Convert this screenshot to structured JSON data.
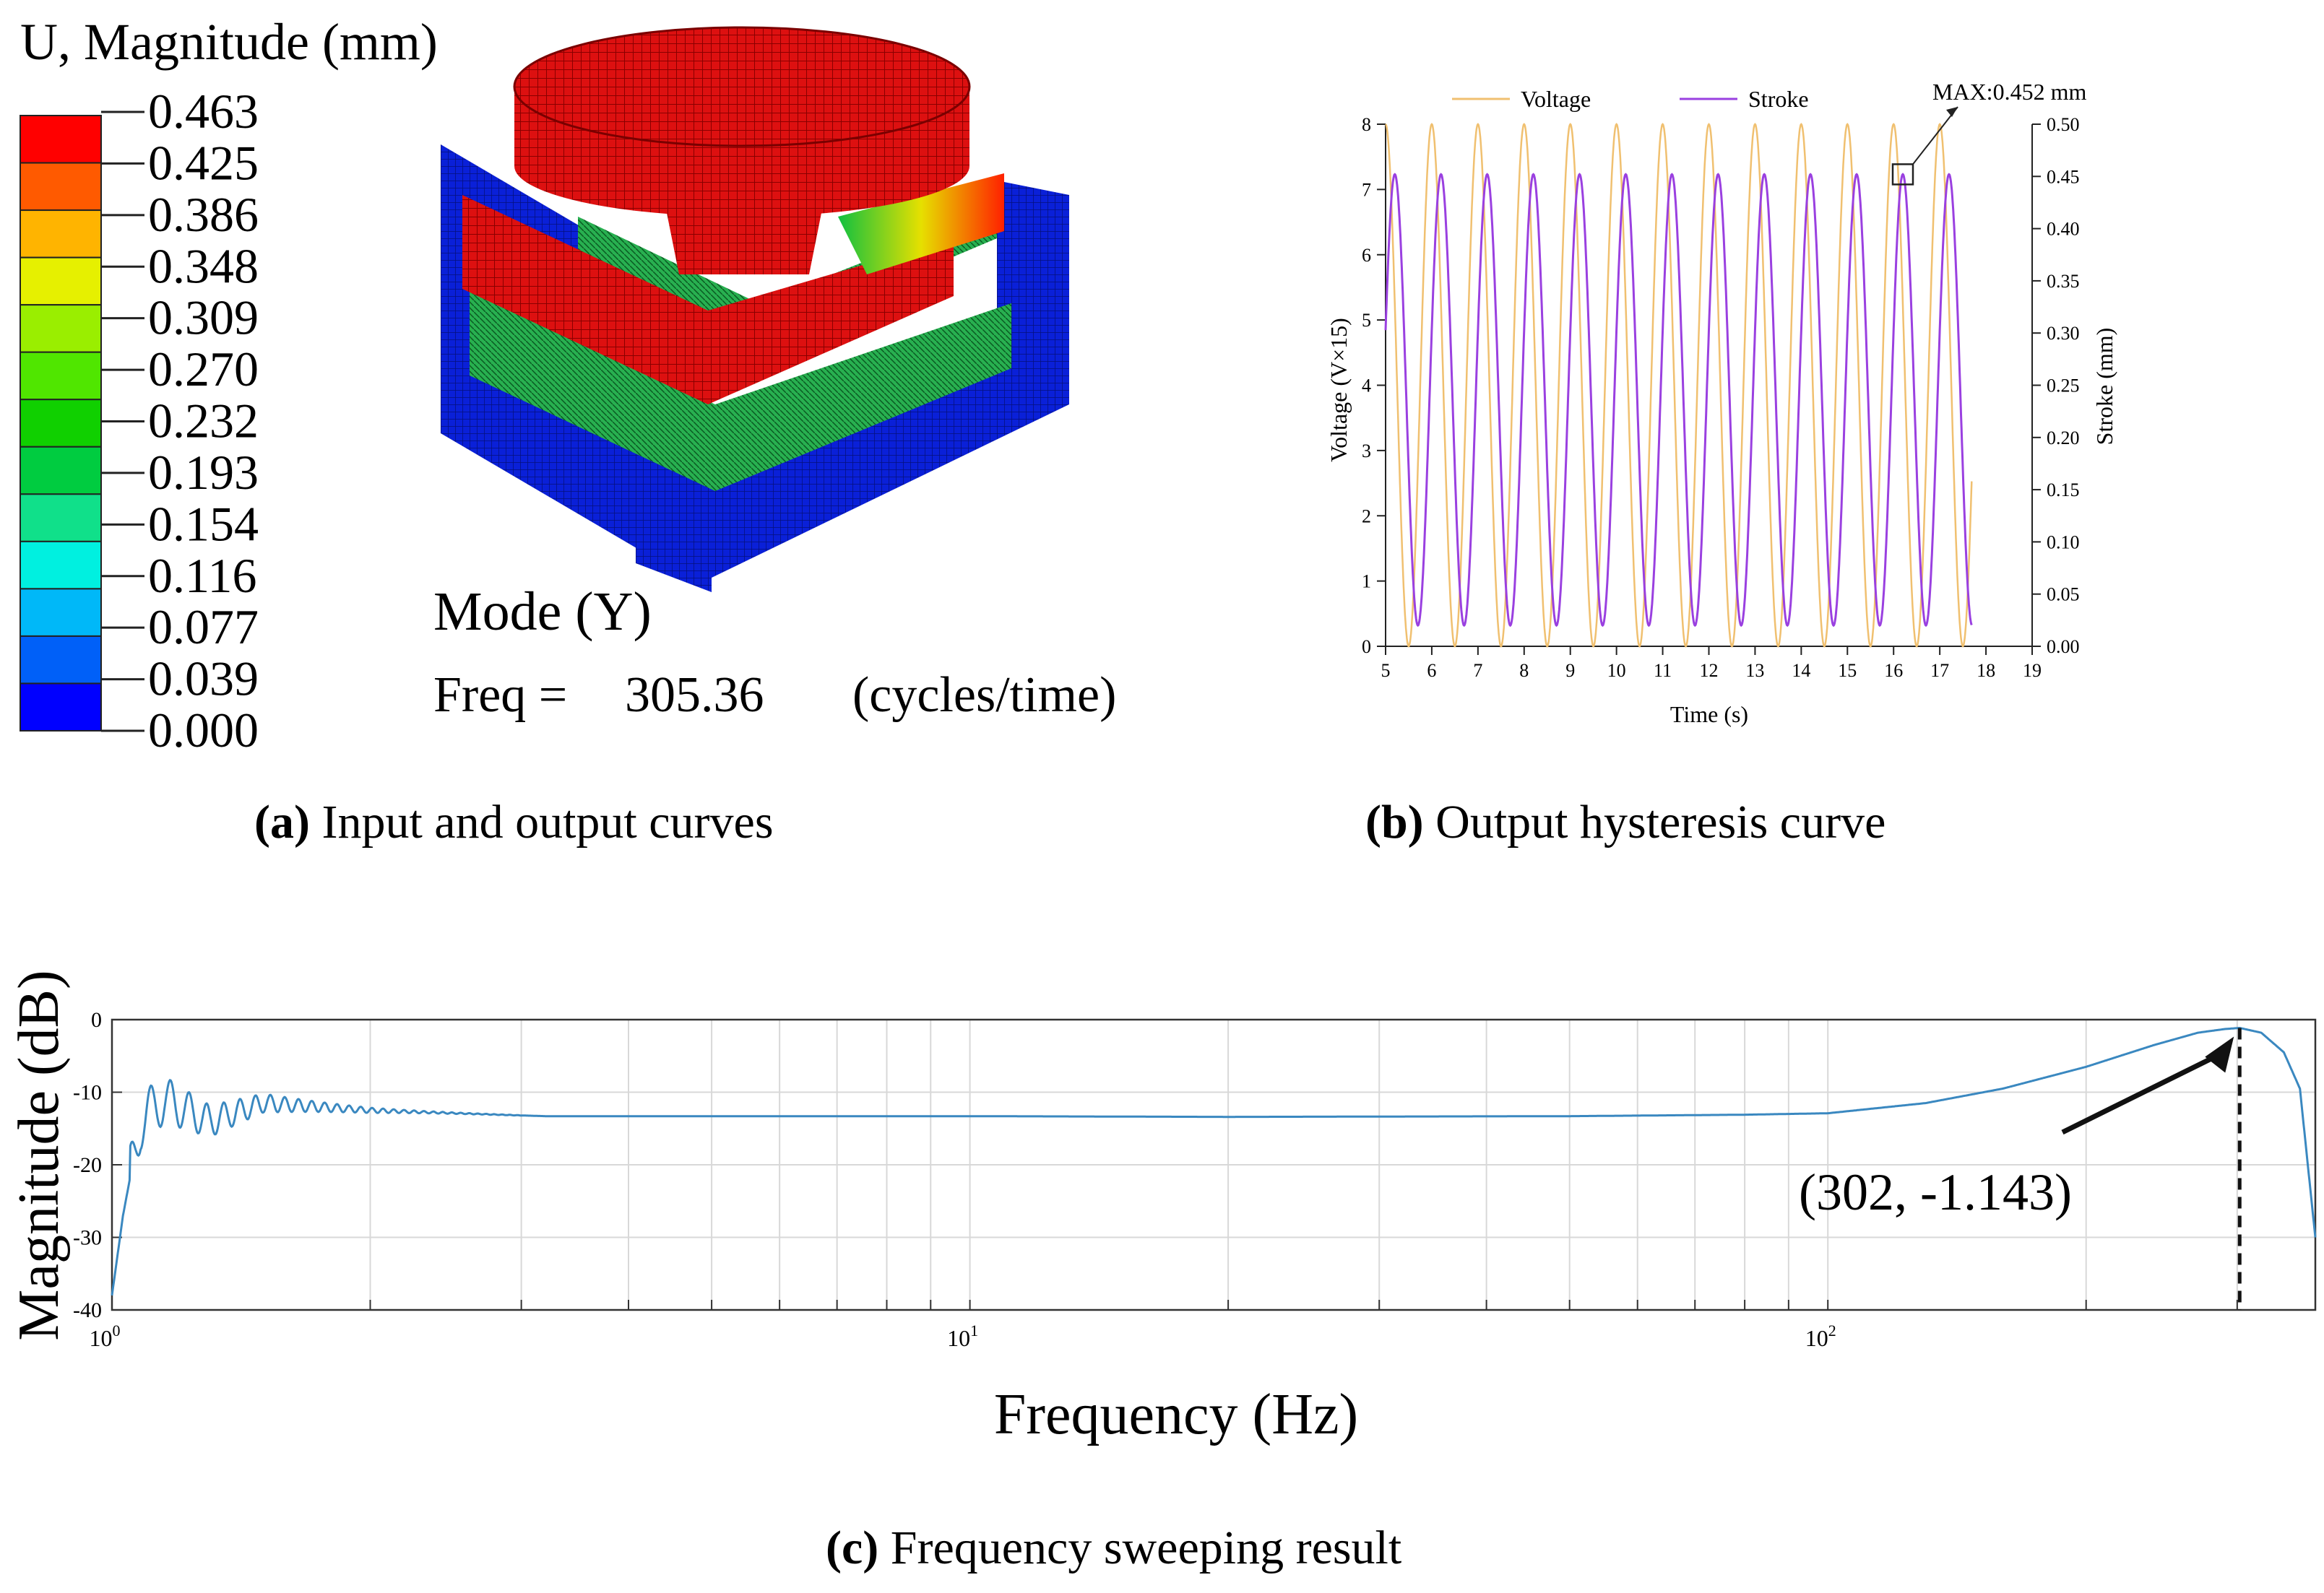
{
  "figure_a": {
    "legend_title": "U, Magnitude  (mm)",
    "legend_values": [
      "0.463",
      "0.425",
      "0.386",
      "0.348",
      "0.309",
      "0.270",
      "0.232",
      "0.193",
      "0.154",
      "0.116",
      "0.077",
      "0.039",
      "0.000"
    ],
    "legend_colors": [
      "#ff0000",
      "#ff5a00",
      "#ffb400",
      "#e6f000",
      "#9aee00",
      "#50e600",
      "#10d000",
      "#00cc40",
      "#10e08a",
      "#00f0e0",
      "#00b8f8",
      "#0060f8",
      "#0000ff"
    ],
    "mode_label": "Mode (Y)",
    "freq_label": "Freq =",
    "freq_value": "305.36",
    "freq_unit": "(cycles/time)",
    "caption_letter": "(a)",
    "caption_text": " Input and output curves"
  },
  "chart_data": [
    {
      "type": "line",
      "id": "b",
      "title": "",
      "xlabel": "Time (s)",
      "ylabel": "Voltage (V×15)",
      "y2label": "Stroke (mm)",
      "xlim": [
        5,
        19
      ],
      "ylim": [
        0,
        8
      ],
      "y2lim": [
        0,
        0.5
      ],
      "x_ticks": [
        5,
        6,
        7,
        8,
        9,
        10,
        11,
        12,
        13,
        14,
        15,
        16,
        17,
        18,
        19
      ],
      "y_ticks": [
        0,
        1,
        2,
        3,
        4,
        5,
        6,
        7,
        8
      ],
      "y2_ticks": [
        "0.00",
        "0.05",
        "0.10",
        "0.15",
        "0.20",
        "0.25",
        "0.30",
        "0.35",
        "0.40",
        "0.45",
        "0.50"
      ],
      "series": [
        {
          "name": "Voltage",
          "color": "#f0c070",
          "axis": "left",
          "period_s": 1,
          "first_peak_s": 5,
          "min": 0,
          "max": 8,
          "x_end": 17.7
        },
        {
          "name": "Stroke",
          "color": "#9a40e0",
          "axis": "right",
          "period_s": 1,
          "first_peak_s": 5.2,
          "min": 0.02,
          "max": 0.452,
          "x_end": 17.7
        }
      ],
      "annotation": "MAX:0.452 mm",
      "legend": "top",
      "caption_letter": "(b)",
      "caption_text": " Output hysteresis curve"
    },
    {
      "type": "line",
      "id": "c",
      "title": "",
      "xscale": "log",
      "xlabel": "Frequency (Hz)",
      "ylabel": "Magnitude (dB)",
      "xlim": [
        1,
        370
      ],
      "ylim": [
        -40,
        0
      ],
      "y_ticks": [
        0,
        -10,
        -20,
        -30,
        -40
      ],
      "x_tick_labels": [
        {
          "value": 1,
          "base": "10",
          "exp": "0"
        },
        {
          "value": 10,
          "base": "10",
          "exp": "1"
        },
        {
          "value": 100,
          "base": "10",
          "exp": "2"
        }
      ],
      "series": [
        {
          "name": "Magnitude",
          "color": "#3a88c0",
          "x": [
            1.0,
            1.03,
            1.08,
            1.15,
            1.3,
            1.5,
            2,
            3,
            3.2,
            5,
            10,
            20,
            50,
            80,
            100,
            130,
            160,
            200,
            240,
            270,
            290,
            302,
            320,
            340,
            355,
            370
          ],
          "y": [
            -38,
            -27,
            -14,
            -11,
            -14,
            -11.5,
            -12.5,
            -13.2,
            -13.3,
            -13.3,
            -13.3,
            -13.4,
            -13.3,
            -13.1,
            -12.9,
            -11.5,
            -9.5,
            -6.5,
            -3.5,
            -1.8,
            -1.3,
            -1.143,
            -1.8,
            -4.5,
            -9.5,
            -30
          ]
        }
      ],
      "annotation": "(302, -1.143)",
      "annotation_x": 302,
      "grid": true,
      "caption_letter": "(c)",
      "caption_text": " Frequency sweeping result"
    }
  ]
}
